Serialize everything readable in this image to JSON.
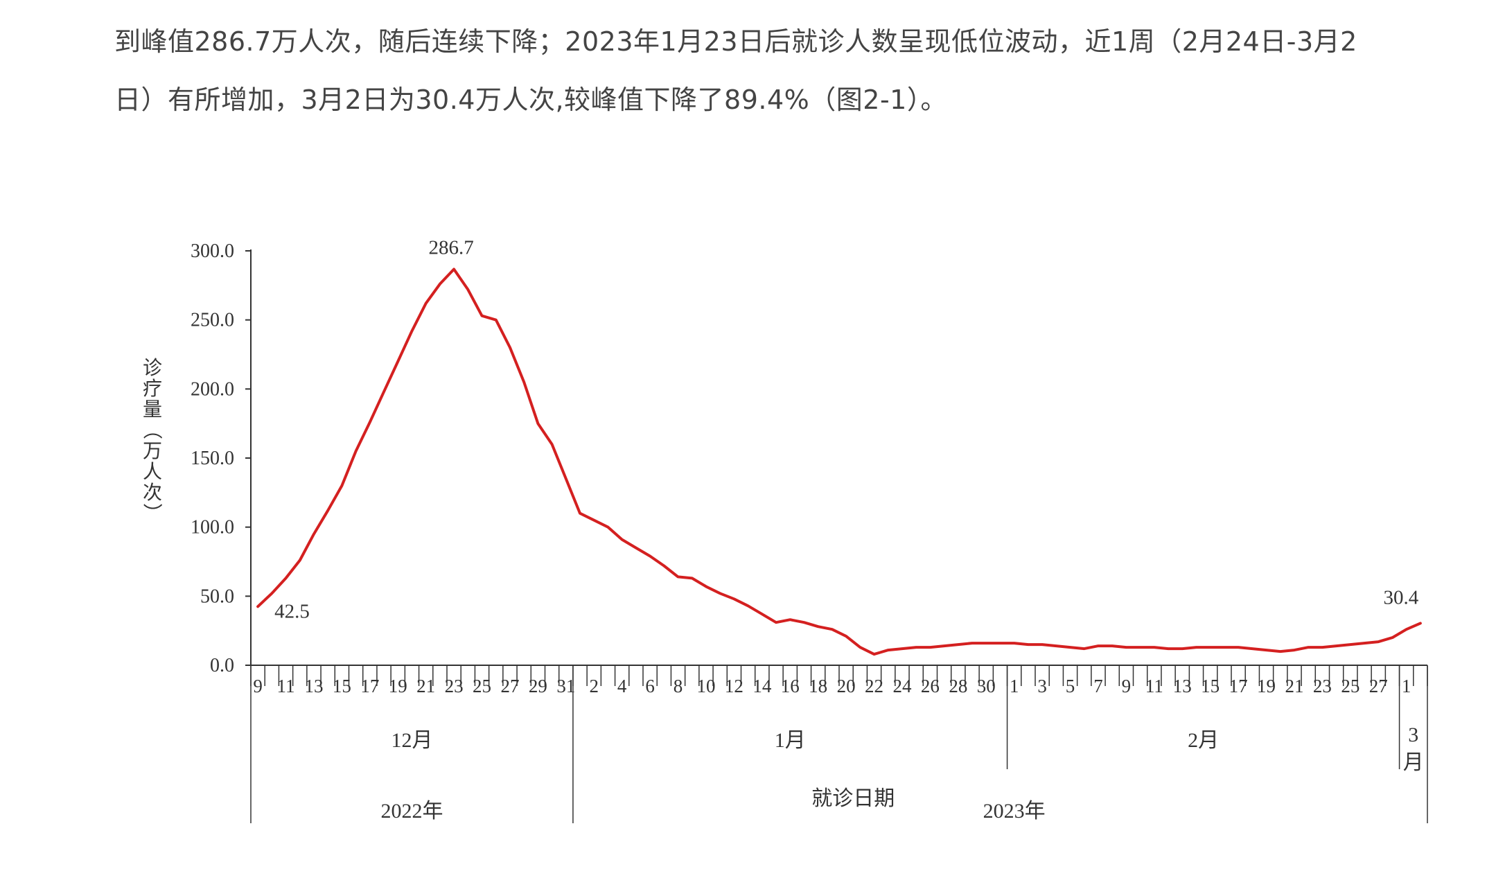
{
  "intro": {
    "line1": "到峰值286.7万人次，随后连续下降；2023年1月23日后就诊人数呈现低位波动，近1周（2月24日-3月2",
    "line2": "日）有所增加，3月2日为30.4万人次,较峰值下降了89.4%（图2-1）。"
  },
  "chart_data": {
    "type": "line",
    "title": "",
    "ylabel": "诊疗量（万人次）",
    "xlabel": "就诊日期",
    "ylim": [
      0,
      300
    ],
    "yticks": [
      "0.0",
      "50.0",
      "100.0",
      "150.0",
      "200.0",
      "250.0",
      "300.0"
    ],
    "x_tick_labels": [
      "9",
      "11",
      "13",
      "15",
      "17",
      "19",
      "21",
      "23",
      "25",
      "27",
      "29",
      "31",
      "2",
      "4",
      "6",
      "8",
      "10",
      "12",
      "14",
      "16",
      "18",
      "20",
      "22",
      "24",
      "26",
      "28",
      "30",
      "1",
      "3",
      "5",
      "7",
      "9",
      "11",
      "13",
      "15",
      "17",
      "19",
      "21",
      "23",
      "25",
      "27",
      "1"
    ],
    "months": [
      {
        "label": "12月",
        "year": "2022年"
      },
      {
        "label": "1月",
        "year": "2023年"
      },
      {
        "label": "2月",
        "year": "2023年"
      },
      {
        "label": "3月",
        "year": "2023年"
      }
    ],
    "year_labels": [
      "2022年",
      "2023年"
    ],
    "annotations": {
      "start": "42.5",
      "peak": "286.7",
      "end": "30.4"
    },
    "line_color": "#d42020",
    "series": [
      {
        "x": [
          "12-09",
          "12-10",
          "12-11",
          "12-12",
          "12-13",
          "12-14",
          "12-15",
          "12-16",
          "12-17",
          "12-18",
          "12-19",
          "12-20",
          "12-21",
          "12-22",
          "12-23",
          "12-24",
          "12-25",
          "12-26",
          "12-27",
          "12-28",
          "12-29",
          "12-30",
          "12-31",
          "01-01",
          "01-02",
          "01-03",
          "01-04",
          "01-05",
          "01-06",
          "01-07",
          "01-08",
          "01-09",
          "01-10",
          "01-11",
          "01-12",
          "01-13",
          "01-14",
          "01-15",
          "01-16",
          "01-17",
          "01-18",
          "01-19",
          "01-20",
          "01-21",
          "01-22",
          "01-23",
          "01-24",
          "01-25",
          "01-26",
          "01-27",
          "01-28",
          "01-29",
          "01-30",
          "01-31",
          "02-01",
          "02-02",
          "02-03",
          "02-04",
          "02-05",
          "02-06",
          "02-07",
          "02-08",
          "02-09",
          "02-10",
          "02-11",
          "02-12",
          "02-13",
          "02-14",
          "02-15",
          "02-16",
          "02-17",
          "02-18",
          "02-19",
          "02-20",
          "02-21",
          "02-22",
          "02-23",
          "02-24",
          "02-25",
          "02-26",
          "02-27",
          "02-28",
          "03-01",
          "03-02"
        ],
        "values": [
          42.5,
          52,
          63,
          76,
          95,
          112,
          130,
          155,
          176,
          198,
          220,
          242,
          262,
          276,
          286.7,
          272,
          253,
          250,
          230,
          205,
          175,
          160,
          135,
          110,
          105,
          100,
          91,
          85,
          79,
          72,
          64,
          63,
          57,
          52,
          48,
          43,
          37,
          31,
          33,
          31,
          28,
          26,
          21,
          13,
          8,
          11,
          12,
          13,
          13,
          14,
          15,
          16,
          16,
          16,
          16,
          15,
          15,
          14,
          13,
          12,
          14,
          14,
          13,
          13,
          13,
          12,
          12,
          13,
          13,
          13,
          13,
          12,
          11,
          10,
          11,
          13,
          13,
          14,
          15,
          16,
          17,
          20,
          26,
          30.4
        ]
      }
    ]
  }
}
